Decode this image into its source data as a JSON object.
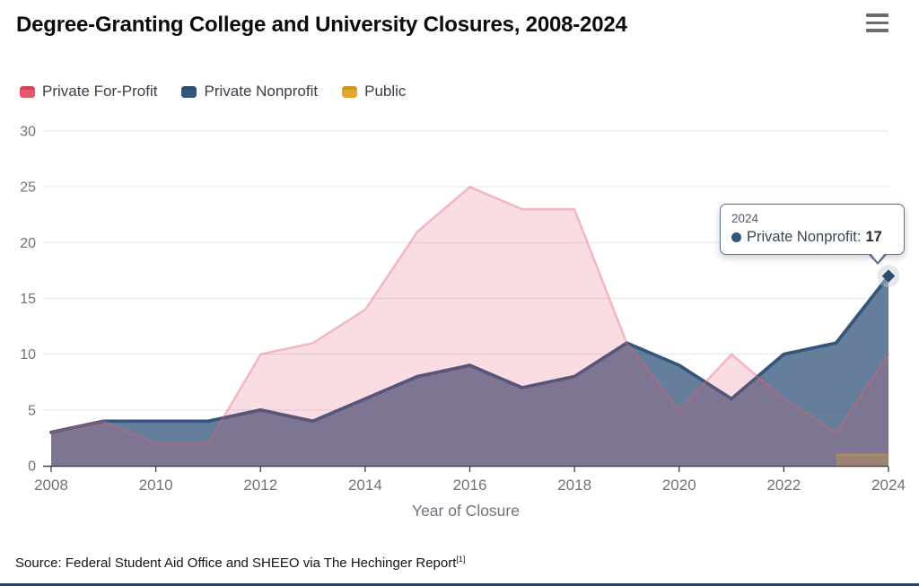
{
  "header": {
    "title": "Degree-Granting College and University Closures, 2008-2024",
    "menu_icon": "hamburger-menu"
  },
  "chart_data": {
    "type": "area",
    "title": "Degree-Granting College and University Closures, 2008-2024",
    "x": [
      2008,
      2009,
      2010,
      2011,
      2012,
      2013,
      2014,
      2015,
      2016,
      2017,
      2018,
      2019,
      2020,
      2021,
      2022,
      2023,
      2024
    ],
    "x_ticks": [
      2008,
      2010,
      2012,
      2014,
      2016,
      2018,
      2020,
      2022,
      2024
    ],
    "y_ticks": [
      0,
      5,
      10,
      15,
      20,
      25,
      30
    ],
    "ylim": [
      0,
      30
    ],
    "xlabel": "Year of Closure",
    "ylabel": "",
    "grid": true,
    "legend_position": "top-left",
    "series": [
      {
        "name": "Private For-Profit",
        "color": "#E4576E",
        "color_dark": "#D04458",
        "line": "rgba(230,95,120,0.38)",
        "line_width": 2.5,
        "fill": "rgba(228,87,110,0.2)",
        "values": [
          3,
          4,
          2,
          2,
          10,
          11,
          14,
          21,
          25,
          23,
          23,
          11,
          5,
          10,
          6,
          3,
          10
        ]
      },
      {
        "name": "Private Nonprofit",
        "color": "#33567D",
        "color_dark": "#2E4C6E",
        "line": "#33567D",
        "line_width": 3.7,
        "fill": "rgba(51,86,125,0.76)",
        "values": [
          3,
          4,
          4,
          4,
          5,
          4,
          6,
          8,
          9,
          7,
          8,
          11,
          9,
          6,
          10,
          11,
          17
        ]
      },
      {
        "name": "Public",
        "color": "#E2A72E",
        "color_dark": "#CE9526",
        "line": "rgba(214,155,40,0.5)",
        "line_width": 2,
        "fill": "rgba(224,166,43,0.3)",
        "values": [
          null,
          null,
          null,
          null,
          null,
          null,
          null,
          null,
          null,
          null,
          null,
          null,
          null,
          null,
          null,
          1,
          1
        ]
      }
    ],
    "marker": {
      "year": 2024,
      "series": "Private Nonprofit",
      "value": 17,
      "shape": "diamond"
    }
  },
  "tooltip": {
    "year": "2024",
    "label": "Private Nonprofit:",
    "value": "17"
  },
  "source": {
    "text": "Source: Federal Student Aid Office and SHEEO via The Hechinger Report",
    "footnote": "[1]"
  }
}
